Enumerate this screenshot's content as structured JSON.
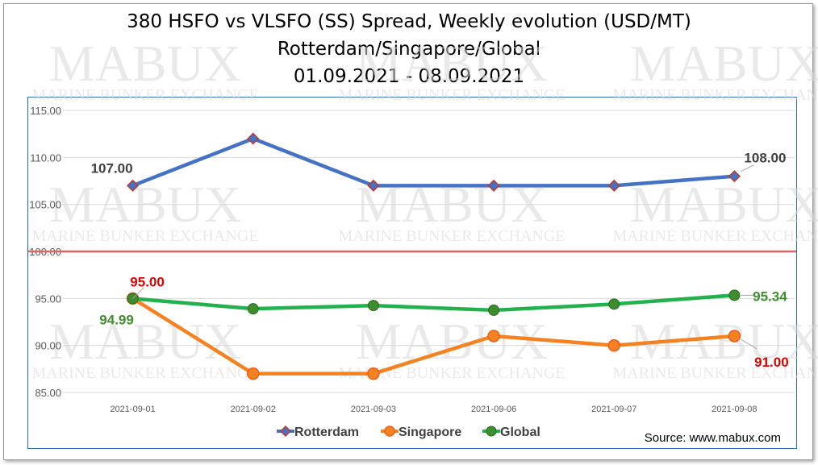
{
  "title_lines": [
    "380 HSFO vs VLSFO (SS) Spread, Weekly evolution (USD/MT)",
    "Rotterdam/Singapore/Global",
    "01.09.2021 - 08.09.2021"
  ],
  "watermark": {
    "big": "MABUX",
    "small": "MARINE BUNKER EXCHANGE"
  },
  "source": "Source: www.mabux.com",
  "colors": {
    "rotterdam": "#4472c4",
    "rotterdam_marker": "#c0392b",
    "singapore": "#f58220",
    "singapore_marker": "#e8601c",
    "global": "#22b14c",
    "global_marker": "#3f8c2e",
    "reference": "#e06666",
    "label_black": "#404040",
    "label_red": "#e00000",
    "label_green": "#3f8c2e"
  },
  "chart_data": {
    "type": "line",
    "categories": [
      "2021-09-01",
      "2021-09-02",
      "2021-09-03",
      "2021-09-06",
      "2021-09-07",
      "2021-09-08"
    ],
    "series": [
      {
        "name": "Rotterdam",
        "values": [
          107.0,
          112.0,
          107.0,
          107.0,
          107.0,
          108.0
        ]
      },
      {
        "name": "Singapore",
        "values": [
          95.0,
          87.0,
          87.0,
          91.0,
          90.0,
          91.0
        ]
      },
      {
        "name": "Global",
        "values": [
          94.99,
          93.9,
          94.25,
          93.75,
          94.4,
          95.34
        ]
      }
    ],
    "y_ticks": [
      "85.00",
      "90.00",
      "95.00",
      "100.00",
      "105.00",
      "110.00",
      "115.00"
    ],
    "ylim": [
      85,
      115
    ],
    "reference_line": 100,
    "grid": true,
    "legend": "bottom",
    "data_labels": [
      {
        "series": "Rotterdam",
        "index": 0,
        "text": "107.00"
      },
      {
        "series": "Rotterdam",
        "index": 5,
        "text": "108.00"
      },
      {
        "series": "Singapore",
        "index": 0,
        "text": "95.00"
      },
      {
        "series": "Singapore",
        "index": 5,
        "text": "91.00"
      },
      {
        "series": "Global",
        "index": 0,
        "text": "94.99"
      },
      {
        "series": "Global",
        "index": 5,
        "text": "95.34"
      }
    ]
  }
}
